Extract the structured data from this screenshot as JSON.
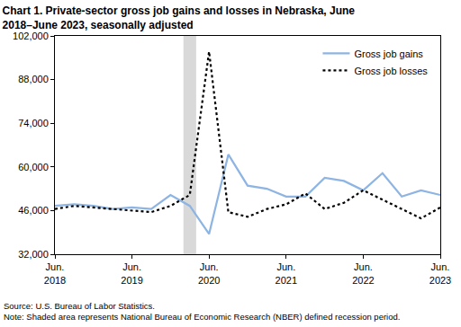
{
  "chart_data": {
    "type": "line",
    "title": "Chart 1. Private-sector gross job gains and losses in Nebraska, June\n2018–June 2023, seasonally adjusted",
    "categories": [
      "Jun. 2018",
      null,
      null,
      null,
      "Jun. 2019",
      null,
      null,
      null,
      "Jun. 2020",
      null,
      null,
      null,
      "Jun. 2021",
      null,
      null,
      null,
      "Jun. 2022",
      null,
      null,
      null,
      "Jun. 2023"
    ],
    "series": [
      {
        "name": "Gross job gains",
        "color": "#8db4e2",
        "line_style": "solid",
        "values": [
          47500,
          48000,
          47500,
          46500,
          47000,
          46500,
          51000,
          47500,
          38500,
          64000,
          54000,
          53000,
          50500,
          50500,
          56500,
          55500,
          52500,
          58000,
          50500,
          52500,
          51000
        ]
      },
      {
        "name": "Gross job losses",
        "color": "#000000",
        "line_style": "dotted",
        "values": [
          46500,
          47500,
          47000,
          46500,
          46000,
          45500,
          47500,
          51000,
          97000,
          45500,
          44000,
          46500,
          48000,
          51500,
          46500,
          48500,
          52500,
          49500,
          46500,
          43500,
          47000
        ]
      }
    ],
    "ylim": [
      32000,
      102000
    ],
    "yticks": [
      {
        "value": 32000,
        "label": "32,000"
      },
      {
        "value": 46000,
        "label": "46,000"
      },
      {
        "value": 60000,
        "label": "60,000"
      },
      {
        "value": 74000,
        "label": "74,000"
      },
      {
        "value": 88000,
        "label": "88,000"
      },
      {
        "value": 102000,
        "label": "102,000"
      }
    ],
    "grid": false,
    "legend": "upper right",
    "recession_shading": {
      "from": 6.67,
      "to": 7.33
    },
    "notes": [
      "Source: U.S. Bureau of Labor Statistics.",
      "Note: Shaded area represents National Bureau of Economic Research (NBER) defined recession period."
    ]
  }
}
